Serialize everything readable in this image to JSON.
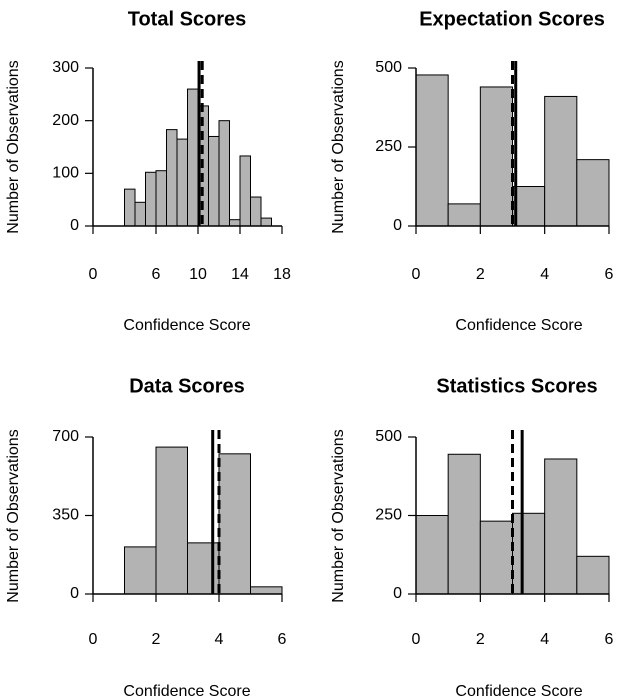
{
  "chart_data": [
    {
      "type": "bar",
      "title": "Total Scores",
      "xlabel": "Confidence Score",
      "ylabel": "Number of Observations",
      "xlim": [
        0,
        18
      ],
      "ylim": [
        0,
        300
      ],
      "xticks": [
        0,
        6,
        10,
        14,
        18
      ],
      "yticks": [
        0,
        100,
        200,
        300
      ],
      "bins": [
        {
          "x0": 3,
          "x1": 4,
          "value": 70
        },
        {
          "x0": 4,
          "x1": 5,
          "value": 45
        },
        {
          "x0": 5,
          "x1": 6,
          "value": 102
        },
        {
          "x0": 6,
          "x1": 7,
          "value": 105
        },
        {
          "x0": 7,
          "x1": 8,
          "value": 183
        },
        {
          "x0": 8,
          "x1": 9,
          "value": 165
        },
        {
          "x0": 9,
          "x1": 10,
          "value": 260
        },
        {
          "x0": 10,
          "x1": 11,
          "value": 228
        },
        {
          "x0": 11,
          "x1": 12,
          "value": 170
        },
        {
          "x0": 12,
          "x1": 13,
          "value": 200
        },
        {
          "x0": 13,
          "x1": 14,
          "value": 12
        },
        {
          "x0": 14,
          "x1": 15,
          "value": 133
        },
        {
          "x0": 15,
          "x1": 16,
          "value": 55
        },
        {
          "x0": 16,
          "x1": 17,
          "value": 15
        }
      ],
      "solid_line_x": 10.1,
      "dashed_line_x": 10.4
    },
    {
      "type": "bar",
      "title": "Expectation Scores",
      "xlabel": "Confidence Score",
      "ylabel": "Number of Observations",
      "xlim": [
        0,
        6
      ],
      "ylim": [
        0,
        500
      ],
      "xticks": [
        0,
        2,
        4,
        6
      ],
      "yticks": [
        0,
        250,
        500
      ],
      "bins": [
        {
          "x0": 0,
          "x1": 1,
          "value": 478
        },
        {
          "x0": 1,
          "x1": 2,
          "value": 70
        },
        {
          "x0": 2,
          "x1": 3,
          "value": 440
        },
        {
          "x0": 3,
          "x1": 4,
          "value": 125
        },
        {
          "x0": 4,
          "x1": 5,
          "value": 410
        },
        {
          "x0": 5,
          "x1": 6,
          "value": 210
        }
      ],
      "solid_line_x": 3.1,
      "dashed_line_x": 3.0
    },
    {
      "type": "bar",
      "title": "Data Scores",
      "xlabel": "Confidence Score",
      "ylabel": "Number of Observations",
      "xlim": [
        0,
        6
      ],
      "ylim": [
        0,
        700
      ],
      "xticks": [
        0,
        2,
        4,
        6
      ],
      "yticks": [
        0,
        350,
        700
      ],
      "bins": [
        {
          "x0": 1,
          "x1": 2,
          "value": 210
        },
        {
          "x0": 2,
          "x1": 3,
          "value": 655
        },
        {
          "x0": 3,
          "x1": 4,
          "value": 228
        },
        {
          "x0": 4,
          "x1": 5,
          "value": 625
        },
        {
          "x0": 5,
          "x1": 6,
          "value": 32
        }
      ],
      "solid_line_x": 3.8,
      "dashed_line_x": 4.0
    },
    {
      "type": "bar",
      "title": "Statistics Scores",
      "xlabel": "Confidence Score",
      "ylabel": "Number of Observations",
      "xlim": [
        0,
        6
      ],
      "ylim": [
        0,
        500
      ],
      "xticks": [
        0,
        2,
        4,
        6
      ],
      "yticks": [
        0,
        250,
        500
      ],
      "bins": [
        {
          "x0": 0,
          "x1": 1,
          "value": 250
        },
        {
          "x0": 1,
          "x1": 2,
          "value": 445
        },
        {
          "x0": 2,
          "x1": 3,
          "value": 232
        },
        {
          "x0": 3,
          "x1": 4,
          "value": 257
        },
        {
          "x0": 4,
          "x1": 5,
          "value": 430
        },
        {
          "x0": 5,
          "x1": 6,
          "value": 120
        }
      ],
      "solid_line_x": 3.3,
      "dashed_line_x": 3.0
    }
  ]
}
